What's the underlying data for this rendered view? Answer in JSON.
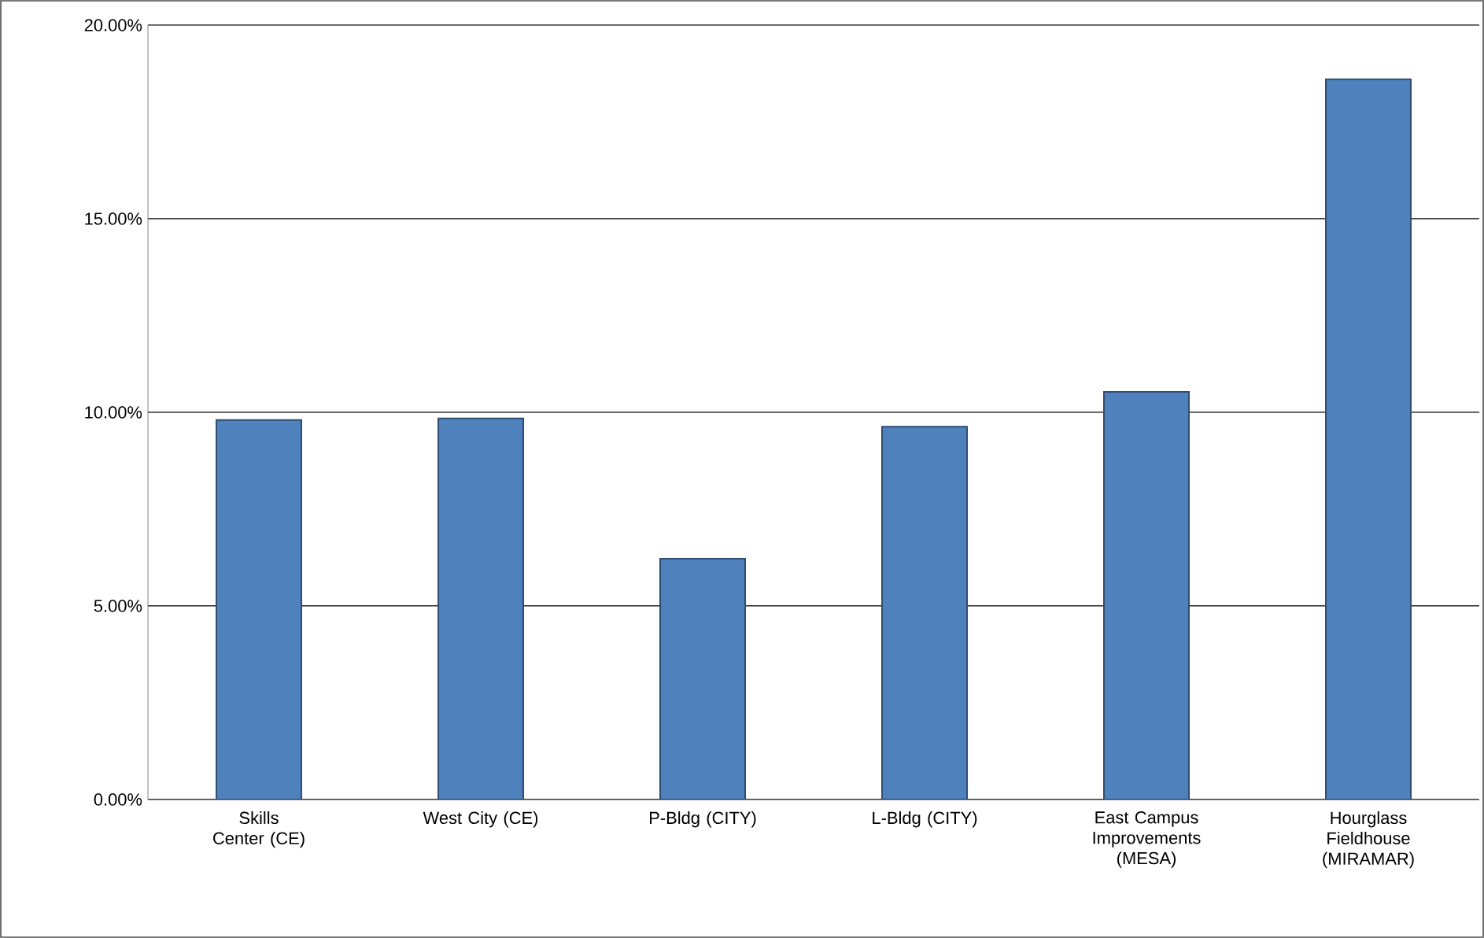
{
  "chart_data": {
    "type": "bar",
    "categories": [
      "Skills Center (CE)",
      "West City (CE)",
      "P-Bldg (CITY)",
      "L-Bldg (CITY)",
      "East Campus Improvements (MESA)",
      "Hourglass Fieldhouse (MIRAMAR)"
    ],
    "values": [
      9.8,
      9.84,
      6.22,
      9.63,
      10.53,
      18.6
    ],
    "color": "#4f81bd",
    "ylim": [
      0,
      20
    ],
    "yticks": [
      {
        "value": 0,
        "label": "0.00%"
      },
      {
        "value": 5,
        "label": "5.00%"
      },
      {
        "value": 10,
        "label": "10.00%"
      },
      {
        "value": 15,
        "label": "15.00%"
      },
      {
        "value": 20,
        "label": "20.00%"
      }
    ],
    "grid": "y"
  }
}
